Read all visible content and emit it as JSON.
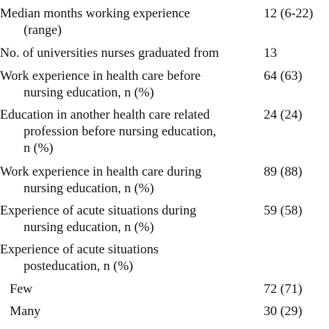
{
  "rows": [
    {
      "label_lines": [
        "Median months working experience",
        "(range)"
      ],
      "value": "12 (6-22)"
    },
    {
      "label_lines": [
        "No. of universities nurses graduated from"
      ],
      "value": "13"
    },
    {
      "label_lines": [
        "Work experience in health care before",
        "nursing education, n (%)"
      ],
      "value": "64 (63)"
    },
    {
      "label_lines": [
        "Education in another health care related",
        "profession before nursing education,",
        "n (%)"
      ],
      "value": "24 (24)"
    },
    {
      "label_lines": [
        "Work experience in health care during",
        "nursing education, n (%)"
      ],
      "value": "89 (88)"
    },
    {
      "label_lines": [
        "Experience of acute situations during",
        "nursing education, n (%)"
      ],
      "value": "59 (58)"
    },
    {
      "label_lines": [
        "Experience of acute situations",
        "posteducation, n (%)"
      ],
      "value": ""
    },
    {
      "label_lines": [
        "Few"
      ],
      "value": "72 (71)"
    },
    {
      "label_lines": [
        "Many"
      ],
      "value": "30 (29)"
    }
  ]
}
